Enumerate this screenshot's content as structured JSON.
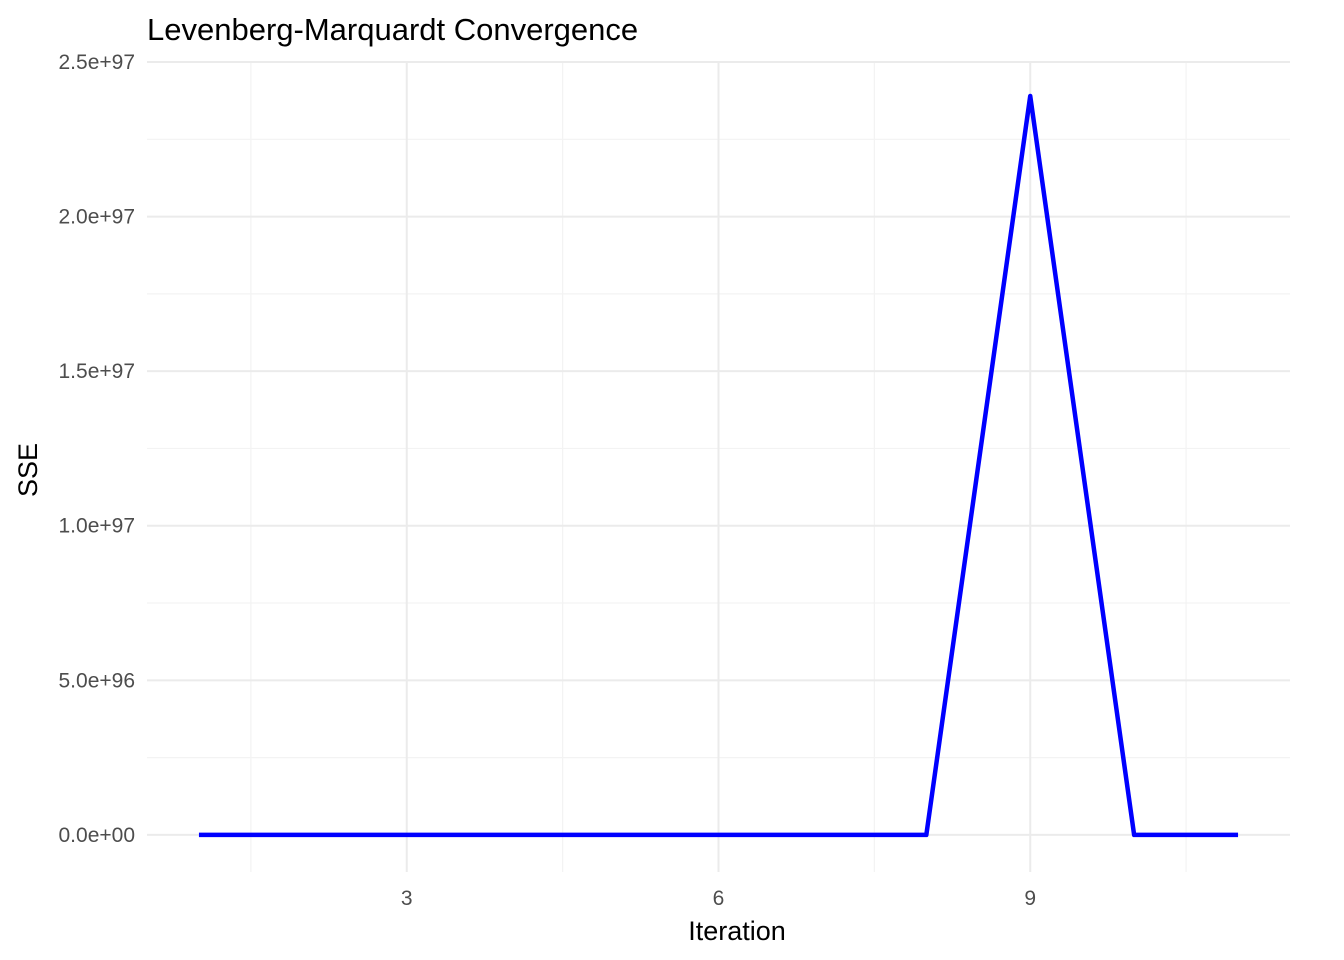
{
  "chart_data": {
    "type": "line",
    "title": "Levenberg-Marquardt Convergence",
    "xlabel": "Iteration",
    "ylabel": "SSE",
    "x": [
      1,
      2,
      3,
      4,
      5,
      6,
      7,
      8,
      9,
      10,
      11
    ],
    "series": [
      {
        "values": [
          0,
          0,
          0,
          0,
          0,
          0,
          0,
          0,
          2.39e+97,
          0,
          0
        ],
        "color": "#0000ff"
      }
    ],
    "xlim": [
      0.5,
      11.5
    ],
    "ylim": [
      -1.2e+96,
      2.5e+97
    ],
    "xticks": [
      3,
      6,
      9
    ],
    "xtick_labels": [
      "3",
      "6",
      "9"
    ],
    "yticks": [
      0,
      5e+96,
      1e+97,
      1.5e+97,
      2e+97,
      2.5e+97
    ],
    "ytick_labels": [
      "0.0e+00",
      "5.0e+96",
      "1.0e+97",
      "1.5e+97",
      "2.0e+97",
      "2.5e+97"
    ],
    "grid": true,
    "legend": "none"
  }
}
